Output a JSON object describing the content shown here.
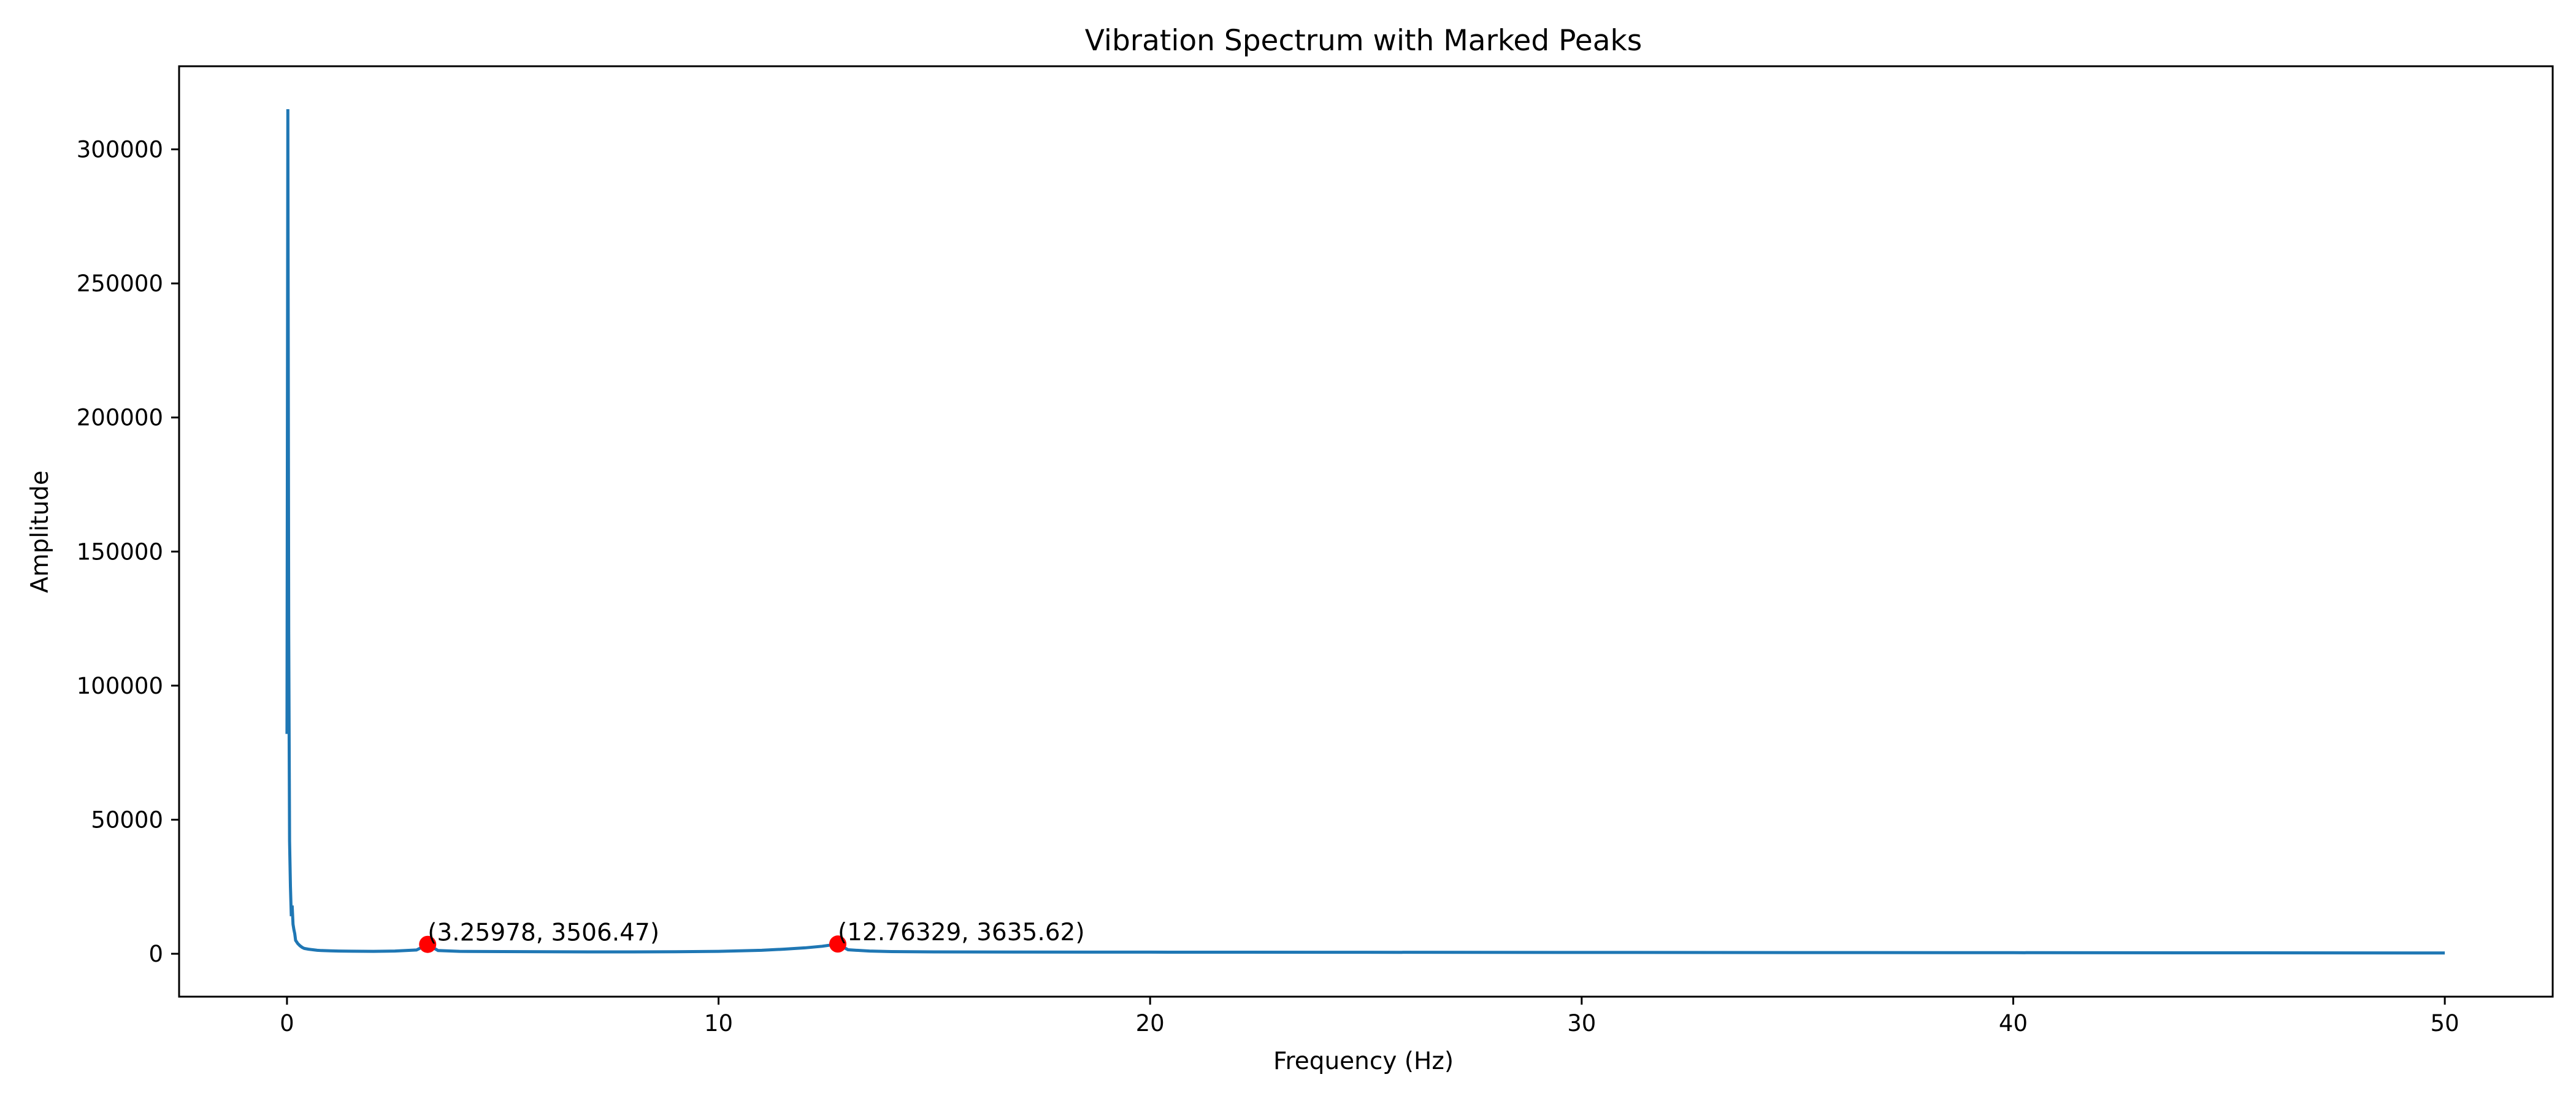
{
  "chart_data": {
    "type": "line",
    "title": "Vibration Spectrum with Marked Peaks",
    "xlabel": "Frequency (Hz)",
    "ylabel": "Amplitude",
    "xlim": [
      -2.5,
      52.5
    ],
    "ylim": [
      -16000,
      331000
    ],
    "xticks": [
      0,
      10,
      20,
      30,
      40,
      50
    ],
    "xtick_labels": [
      "0",
      "10",
      "20",
      "30",
      "40",
      "50"
    ],
    "yticks": [
      0,
      50000,
      100000,
      150000,
      200000,
      250000,
      300000
    ],
    "ytick_labels": [
      "0",
      "50000",
      "100000",
      "150000",
      "200000",
      "250000",
      "300000"
    ],
    "grid": false,
    "line_color": "#1f77b4",
    "marker_color": "#ff0000",
    "series": [
      {
        "x": [
          0.0,
          0.02,
          0.04,
          0.06,
          0.08,
          0.1,
          0.12,
          0.14,
          0.16,
          0.18,
          0.2,
          0.25,
          0.3,
          0.35,
          0.4,
          0.5,
          0.6,
          0.7,
          0.8,
          1.0,
          1.2,
          1.5,
          2.0,
          2.5,
          3.0,
          3.25978,
          3.5,
          4.0,
          5.0,
          6.0,
          7.0,
          8.0,
          9.0,
          10.0,
          10.5,
          11.0,
          11.5,
          12.0,
          12.4,
          12.76329,
          13.0,
          13.5,
          14.0,
          15.0,
          17.0,
          20.0,
          25.0,
          30.0,
          35.0,
          40.0,
          45.0,
          50.0
        ],
        "y": [
          82000,
          315000,
          120000,
          42000,
          25000,
          14000,
          18000,
          11000,
          9000,
          7500,
          5000,
          3800,
          3000,
          2400,
          2000,
          1700,
          1500,
          1300,
          1200,
          1100,
          1000,
          950,
          900,
          1000,
          1400,
          3506.47,
          1200,
          900,
          800,
          750,
          700,
          700,
          750,
          900,
          1100,
          1300,
          1700,
          2200,
          2800,
          3635.62,
          1500,
          1000,
          800,
          700,
          650,
          600,
          550,
          500,
          450,
          400,
          350,
          300
        ]
      }
    ],
    "annotations": [
      {
        "x": 3.25978,
        "y": 3506.47,
        "label": "(3.25978, 3506.47)"
      },
      {
        "x": 12.76329,
        "y": 3635.62,
        "label": "(12.76329, 3635.62)"
      }
    ]
  }
}
